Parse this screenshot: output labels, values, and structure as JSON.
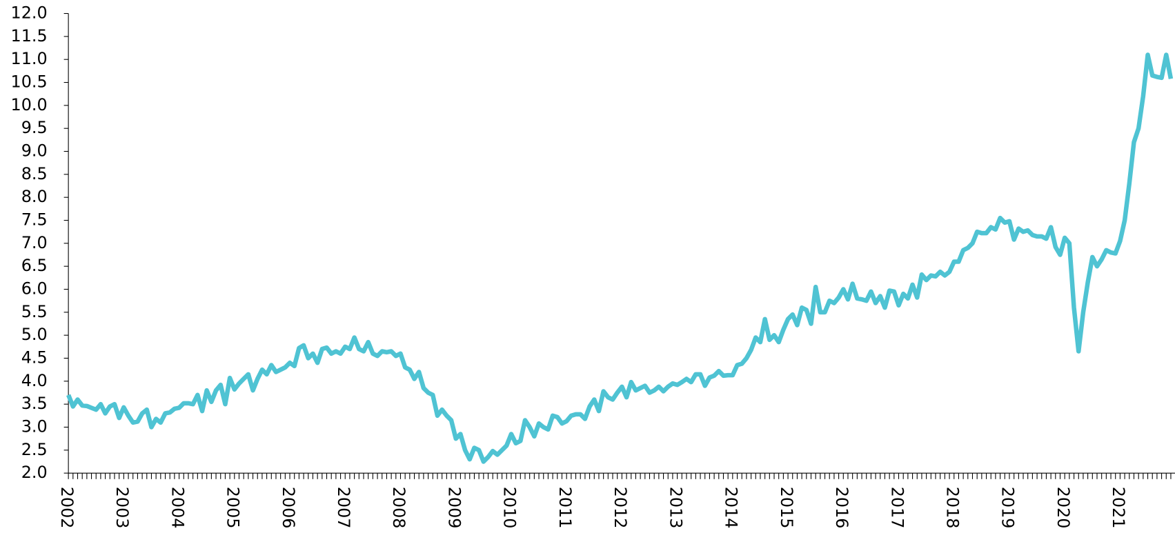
{
  "chart_data": {
    "type": "line",
    "categories": [
      "2002",
      null,
      null,
      null,
      null,
      null,
      null,
      null,
      null,
      null,
      null,
      null,
      "2003",
      null,
      null,
      null,
      null,
      null,
      null,
      null,
      null,
      null,
      null,
      null,
      "2004",
      null,
      null,
      null,
      null,
      null,
      null,
      null,
      null,
      null,
      null,
      null,
      "2005",
      null,
      null,
      null,
      null,
      null,
      null,
      null,
      null,
      null,
      null,
      null,
      "2006",
      null,
      null,
      null,
      null,
      null,
      null,
      null,
      null,
      null,
      null,
      null,
      "2007",
      null,
      null,
      null,
      null,
      null,
      null,
      null,
      null,
      null,
      null,
      null,
      "2008",
      null,
      null,
      null,
      null,
      null,
      null,
      null,
      null,
      null,
      null,
      null,
      "2009",
      null,
      null,
      null,
      null,
      null,
      null,
      null,
      null,
      null,
      null,
      null,
      "2010",
      null,
      null,
      null,
      null,
      null,
      null,
      null,
      null,
      null,
      null,
      null,
      "2011",
      null,
      null,
      null,
      null,
      null,
      null,
      null,
      null,
      null,
      null,
      null,
      "2012",
      null,
      null,
      null,
      null,
      null,
      null,
      null,
      null,
      null,
      null,
      null,
      "2013",
      null,
      null,
      null,
      null,
      null,
      null,
      null,
      null,
      null,
      null,
      null,
      "2014",
      null,
      null,
      null,
      null,
      null,
      null,
      null,
      null,
      null,
      null,
      null,
      "2015",
      null,
      null,
      null,
      null,
      null,
      null,
      null,
      null,
      null,
      null,
      null,
      "2016",
      null,
      null,
      null,
      null,
      null,
      null,
      null,
      null,
      null,
      null,
      null,
      "2017",
      null,
      null,
      null,
      null,
      null,
      null,
      null,
      null,
      null,
      null,
      null,
      "2018",
      null,
      null,
      null,
      null,
      null,
      null,
      null,
      null,
      null,
      null,
      null,
      "2019",
      null,
      null,
      null,
      null,
      null,
      null,
      null,
      null,
      null,
      null,
      null,
      "2020",
      null,
      null,
      null,
      null,
      null,
      null,
      null,
      null,
      null,
      null,
      null,
      "2021",
      null,
      null,
      null,
      null,
      null,
      null,
      null,
      null,
      null,
      null,
      null
    ],
    "series": [
      {
        "color": "#4fc3d3",
        "values": [
          3.7,
          3.45,
          3.6,
          3.47,
          3.46,
          3.42,
          3.38,
          3.5,
          3.3,
          3.45,
          3.5,
          3.2,
          3.43,
          3.25,
          3.1,
          3.12,
          3.3,
          3.38,
          3.0,
          3.18,
          3.1,
          3.3,
          3.32,
          3.4,
          3.42,
          3.52,
          3.52,
          3.5,
          3.7,
          3.35,
          3.8,
          3.55,
          3.8,
          3.92,
          3.5,
          4.07,
          3.82,
          3.95,
          4.05,
          4.15,
          3.8,
          4.05,
          4.25,
          4.15,
          4.35,
          4.2,
          4.25,
          4.3,
          4.4,
          4.33,
          4.72,
          4.78,
          4.5,
          4.6,
          4.4,
          4.7,
          4.73,
          4.6,
          4.65,
          4.6,
          4.75,
          4.7,
          4.95,
          4.7,
          4.65,
          4.85,
          4.6,
          4.55,
          4.65,
          4.63,
          4.65,
          4.55,
          4.6,
          4.3,
          4.25,
          4.05,
          4.2,
          3.85,
          3.75,
          3.7,
          3.25,
          3.38,
          3.25,
          3.15,
          2.75,
          2.85,
          2.5,
          2.3,
          2.55,
          2.5,
          2.25,
          2.35,
          2.48,
          2.4,
          2.5,
          2.6,
          2.85,
          2.65,
          2.7,
          3.15,
          3.0,
          2.8,
          3.08,
          3.0,
          2.95,
          3.25,
          3.22,
          3.08,
          3.13,
          3.25,
          3.28,
          3.28,
          3.18,
          3.45,
          3.6,
          3.35,
          3.78,
          3.65,
          3.6,
          3.75,
          3.88,
          3.65,
          3.98,
          3.8,
          3.85,
          3.9,
          3.75,
          3.8,
          3.88,
          3.78,
          3.88,
          3.95,
          3.92,
          3.98,
          4.05,
          3.98,
          4.15,
          4.15,
          3.9,
          4.08,
          4.12,
          4.22,
          4.12,
          4.13,
          4.13,
          4.35,
          4.38,
          4.5,
          4.68,
          4.95,
          4.85,
          5.35,
          4.9,
          5.0,
          4.85,
          5.12,
          5.35,
          5.45,
          5.22,
          5.6,
          5.55,
          5.25,
          6.05,
          5.5,
          5.5,
          5.75,
          5.7,
          5.82,
          6.0,
          5.78,
          6.12,
          5.8,
          5.78,
          5.75,
          5.95,
          5.7,
          5.85,
          5.6,
          5.97,
          5.95,
          5.65,
          5.9,
          5.8,
          6.1,
          5.82,
          6.32,
          6.2,
          6.3,
          6.28,
          6.38,
          6.3,
          6.38,
          6.6,
          6.6,
          6.85,
          6.9,
          7.0,
          7.25,
          7.22,
          7.22,
          7.35,
          7.3,
          7.55,
          7.45,
          7.48,
          7.08,
          7.32,
          7.25,
          7.28,
          7.18,
          7.15,
          7.15,
          7.1,
          7.35,
          6.92,
          6.75,
          7.12,
          7.0,
          5.6,
          4.65,
          5.5,
          6.15,
          6.7,
          6.5,
          6.65,
          6.85,
          6.8,
          6.78,
          7.05,
          7.5,
          8.3,
          9.2,
          9.5,
          10.2,
          11.1,
          10.65,
          10.62,
          10.6,
          11.1,
          10.58
        ]
      }
    ],
    "ylim": [
      2,
      12
    ],
    "yticks": [
      {
        "value": 2,
        "label": "2.0"
      },
      {
        "value": 2.5,
        "label": "2.5"
      },
      {
        "value": 3,
        "label": "3.0"
      },
      {
        "value": 3.5,
        "label": "3.5"
      },
      {
        "value": 4,
        "label": "4.0"
      },
      {
        "value": 4.5,
        "label": "4.5"
      },
      {
        "value": 5,
        "label": "5.0"
      },
      {
        "value": 5.5,
        "label": "5.5"
      },
      {
        "value": 6,
        "label": "6.0"
      },
      {
        "value": 6.5,
        "label": "6.5"
      },
      {
        "value": 7,
        "label": "7.0"
      },
      {
        "value": 7.5,
        "label": "7.5"
      },
      {
        "value": 8,
        "label": "8.0"
      },
      {
        "value": 8.5,
        "label": "8.5"
      },
      {
        "value": 9,
        "label": "9.0"
      },
      {
        "value": 9.5,
        "label": "9.5"
      },
      {
        "value": 10,
        "label": "10.0"
      },
      {
        "value": 10.5,
        "label": "10.5"
      },
      {
        "value": 11,
        "label": "11.0"
      },
      {
        "value": 11.5,
        "label": "11.5"
      },
      {
        "value": 12,
        "label": "12.0"
      }
    ],
    "grid": false
  }
}
